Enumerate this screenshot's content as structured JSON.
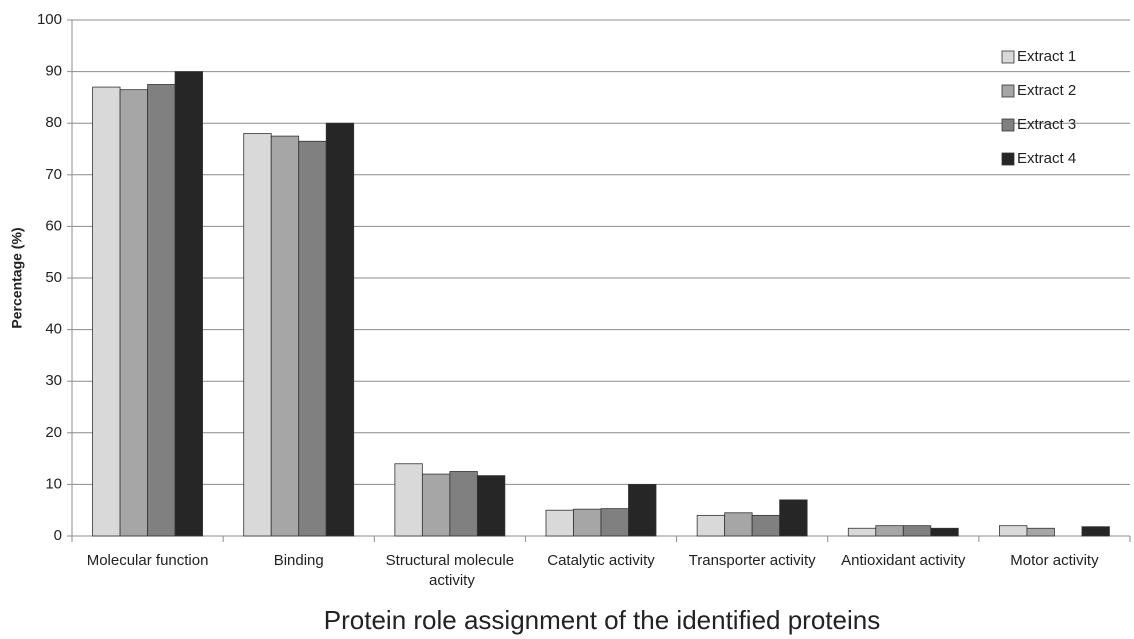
{
  "chart_data": {
    "type": "bar",
    "title": "Protein role assignment of the identified proteins",
    "y_label": "Percentage (%)",
    "categories": [
      "Molecular function",
      "Binding",
      "Structural molecule activity",
      "Catalytic activity",
      "Transporter activity",
      "Antioxidant activity",
      "Motor activity"
    ],
    "series": [
      {
        "name": "Extract 1",
        "color": "#d9d9d9",
        "values": [
          87,
          78,
          14,
          5,
          4,
          1.5,
          2
        ]
      },
      {
        "name": "Extract 2",
        "color": "#a6a6a6",
        "values": [
          86.5,
          77.5,
          12,
          5.2,
          4.5,
          2,
          1.5
        ]
      },
      {
        "name": "Extract 3",
        "color": "#808080",
        "values": [
          87.5,
          76.5,
          12.5,
          5.3,
          4,
          2,
          null
        ]
      },
      {
        "name": "Extract 4",
        "color": "#262626",
        "values": [
          90,
          80,
          11.7,
          10,
          7,
          1.5,
          1.8
        ]
      }
    ],
    "ylim": [
      0,
      100
    ],
    "yticks": [
      0,
      10,
      20,
      30,
      40,
      50,
      60,
      70,
      80,
      90,
      100
    ],
    "grid": true,
    "legend": "top-right"
  }
}
